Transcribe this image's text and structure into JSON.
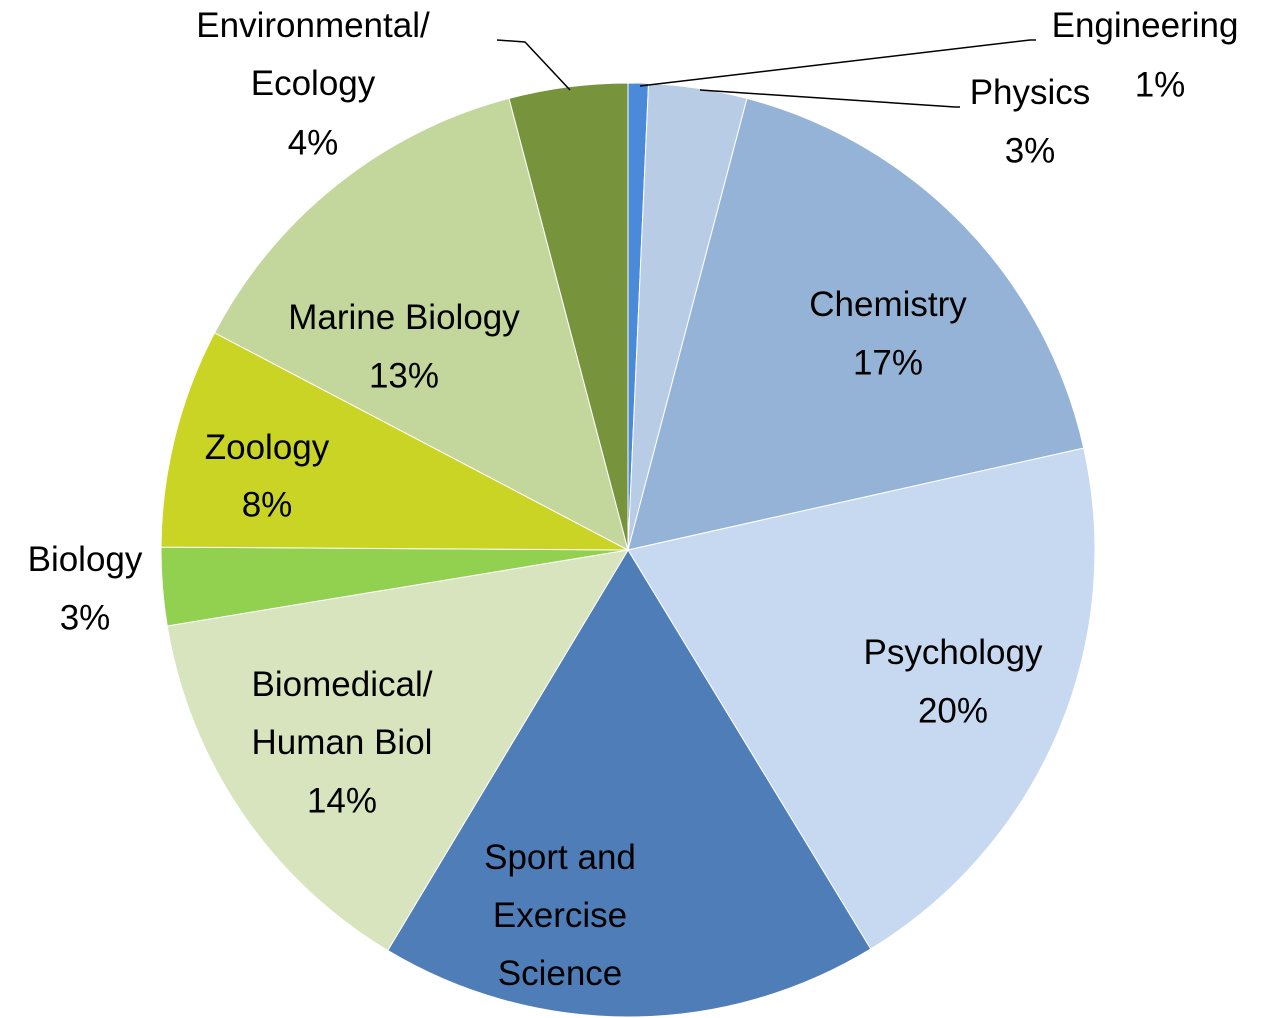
{
  "chart_data": {
    "type": "pie",
    "categories": [
      "Engineering",
      "Physics",
      "Chemistry",
      "Psychology",
      "Sport and\nExercise\nScience",
      "Biomedical/\nHuman Biol",
      "Biology",
      "Zoology",
      "Marine Biology",
      "Environmental/\nEcology"
    ],
    "values": [
      0.7,
      3.4,
      17.4,
      19.8,
      17.3,
      13.8,
      2.7,
      7.6,
      13.2,
      4.1
    ],
    "value_labels": [
      "1%",
      "3%",
      "17%",
      "20%",
      "17%",
      "14%",
      "3%",
      "8%",
      "13%",
      "4%"
    ],
    "colors": [
      "#4a8ad8",
      "#b9cce6",
      "#95b3d7",
      "#c6d9f1",
      "#4f7db8",
      "#d7e4bd",
      "#92d050",
      "#cad424",
      "#c3d69b",
      "#77933c"
    ]
  }
}
